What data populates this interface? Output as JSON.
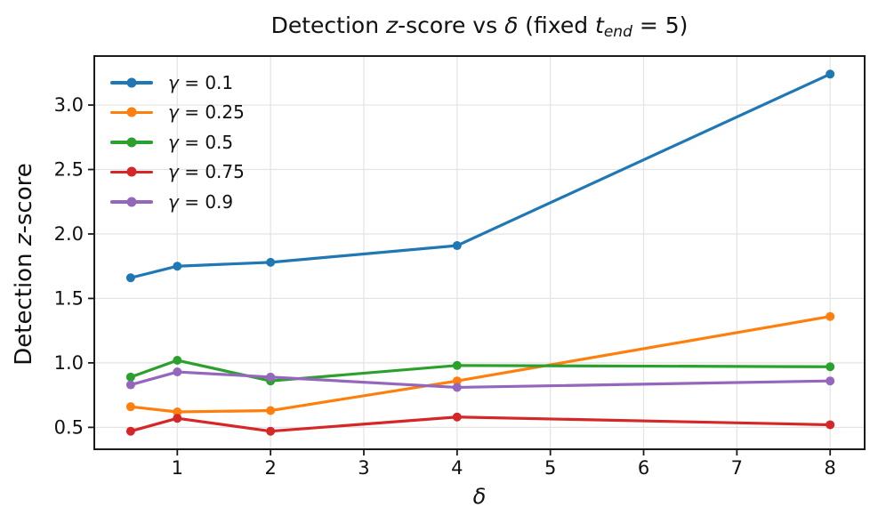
{
  "figure": {
    "title": {
      "parts": [
        "Detection ",
        "z",
        "-score vs ",
        "δ",
        " (fixed ",
        "t",
        "end",
        " = 5)"
      ]
    },
    "xlabel": "δ",
    "ylabel_parts": [
      "Detection ",
      "z",
      "-score"
    ]
  },
  "chart_data": {
    "type": "line",
    "title": "Detection z-score vs δ (fixed t_end = 5)",
    "xlabel": "δ",
    "ylabel": "Detection z-score",
    "x": [
      0.5,
      1,
      2,
      4,
      8
    ],
    "series": [
      {
        "name": "γ = 0.1",
        "color": "#1f77b4",
        "values": [
          1.66,
          1.75,
          1.78,
          1.91,
          3.24
        ]
      },
      {
        "name": "γ = 0.25",
        "color": "#ff7f0e",
        "values": [
          0.66,
          0.62,
          0.63,
          0.86,
          1.36
        ]
      },
      {
        "name": "γ = 0.5",
        "color": "#2ca02c",
        "values": [
          0.89,
          1.02,
          0.86,
          0.98,
          0.97
        ]
      },
      {
        "name": "γ = 0.75",
        "color": "#d62728",
        "values": [
          0.47,
          0.57,
          0.47,
          0.58,
          0.52
        ]
      },
      {
        "name": "γ = 0.9",
        "color": "#9467bd",
        "values": [
          0.83,
          0.93,
          0.89,
          0.81,
          0.86
        ]
      }
    ],
    "xticks": [
      1,
      2,
      3,
      4,
      5,
      6,
      7,
      8
    ],
    "yticks": [
      0.5,
      1.0,
      1.5,
      2.0,
      2.5,
      3.0
    ],
    "xlim": [
      0.11,
      8.37
    ],
    "ylim": [
      0.33,
      3.38
    ],
    "grid": true,
    "legend_position": "upper left",
    "legend_frame": false
  },
  "style": {
    "grid_color": "#e3e3e3",
    "axis_color": "#1a1a1a",
    "text_color": "#111111",
    "background": "#ffffff"
  }
}
